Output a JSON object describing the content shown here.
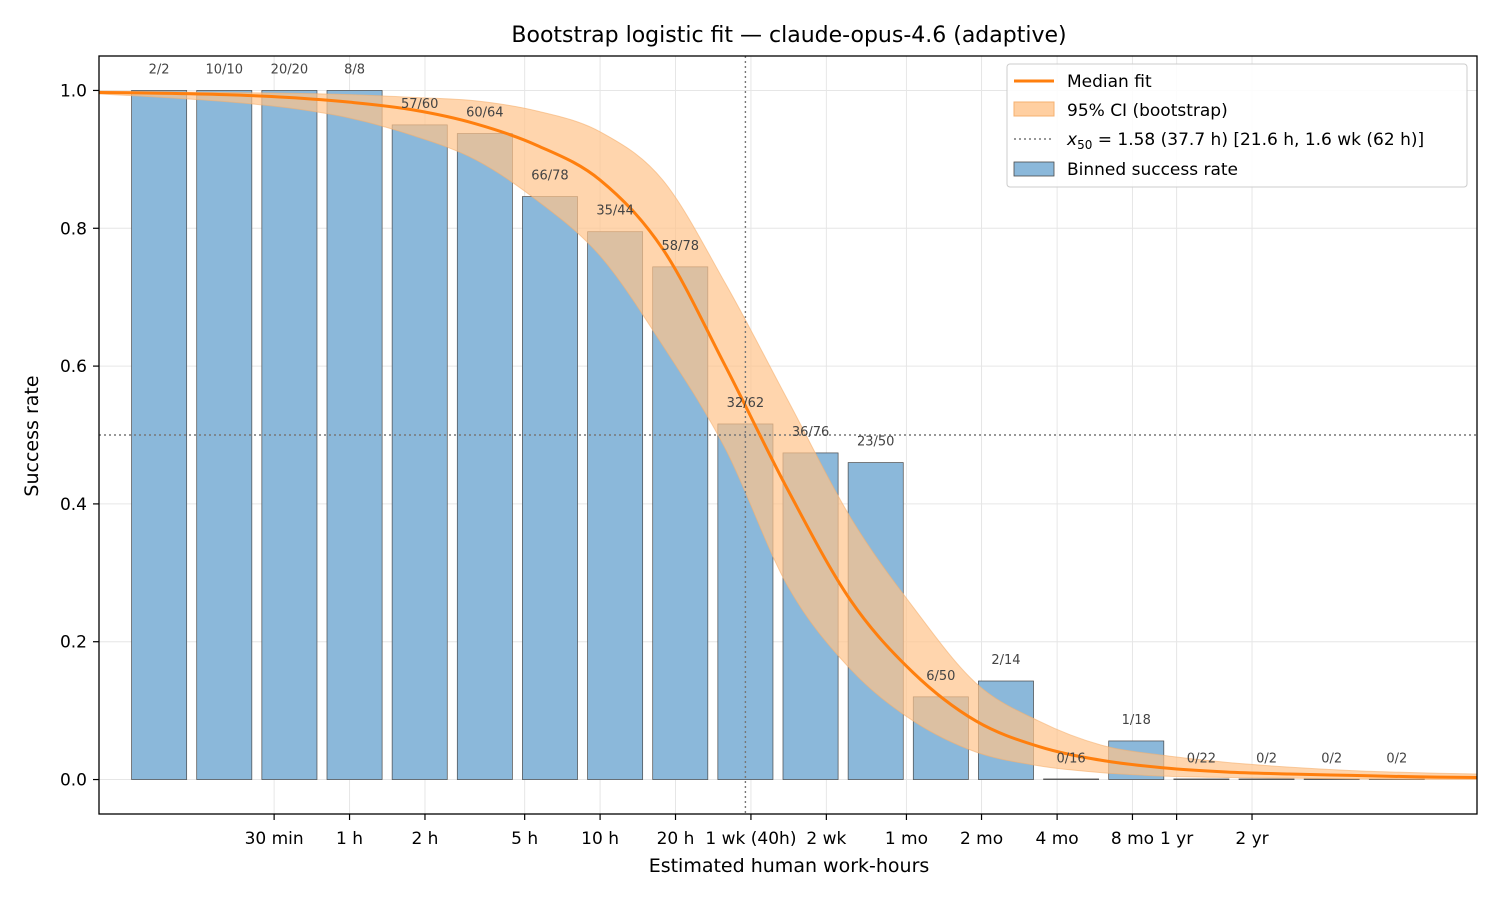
{
  "chart_data": {
    "type": "bar",
    "title": "Bootstrap logistic fit — claude-opus-4.6 (adaptive)",
    "xlabel": "Estimated human work-hours",
    "ylabel": "Success rate",
    "ylim": [
      -0.05,
      1.05
    ],
    "y_ticks": [
      0.0,
      0.2,
      0.4,
      0.6,
      0.8,
      1.0
    ],
    "y_tick_labels": [
      "0.0",
      "0.2",
      "0.4",
      "0.6",
      "0.8",
      "1.0"
    ],
    "x_scale": "log10(hours)",
    "xlim_log10_hours": [
      -1.0,
      4.5
    ],
    "x_ticks": [
      {
        "label": "30 min",
        "hours": 0.5
      },
      {
        "label": "1 h",
        "hours": 1
      },
      {
        "label": "2 h",
        "hours": 2
      },
      {
        "label": "5 h",
        "hours": 5
      },
      {
        "label": "10 h",
        "hours": 10
      },
      {
        "label": "20 h",
        "hours": 20
      },
      {
        "label": "1 wk (40h)",
        "hours": 40
      },
      {
        "label": "2 wk",
        "hours": 80
      },
      {
        "label": "1 mo",
        "hours": 167
      },
      {
        "label": "2 mo",
        "hours": 333
      },
      {
        "label": "4 mo",
        "hours": 667
      },
      {
        "label": "8 mo",
        "hours": 1333
      },
      {
        "label": "1 yr",
        "hours": 2000
      },
      {
        "label": "2 yr",
        "hours": 4000
      }
    ],
    "bin_log10_hours": [
      -0.76,
      -0.5,
      -0.24,
      0.02,
      0.28,
      0.54,
      0.8,
      1.06,
      1.32,
      1.58,
      1.84,
      2.1,
      2.36,
      2.62,
      2.88,
      3.14,
      3.4,
      3.66,
      3.92,
      4.18
    ],
    "bin_width_log10": 0.22,
    "bin_labels": [
      "2/2",
      "10/10",
      "20/20",
      "8/8",
      "57/60",
      "60/64",
      "66/78",
      "35/44",
      "58/78",
      "32/62",
      "36/76",
      "23/50",
      "6/50",
      "2/14",
      "0/16",
      "1/18",
      "0/22",
      "0/2",
      "0/2",
      "0/2"
    ],
    "bin_rates": [
      1.0,
      1.0,
      1.0,
      1.0,
      0.95,
      0.9375,
      0.846,
      0.795,
      0.744,
      0.516,
      0.474,
      0.46,
      0.12,
      0.143,
      0.0,
      0.056,
      0.0,
      0.0,
      0.0,
      0.0
    ],
    "fit_x_log10_hours": [
      -1.0,
      -0.75,
      -0.5,
      -0.25,
      0.0,
      0.25,
      0.5,
      0.75,
      1.0,
      1.25,
      1.5,
      1.75,
      2.0,
      2.25,
      2.5,
      2.75,
      3.0,
      3.25,
      3.5,
      3.75,
      4.0,
      4.25,
      4.5
    ],
    "median_fit": [
      0.997,
      0.996,
      0.994,
      0.99,
      0.983,
      0.972,
      0.952,
      0.92,
      0.87,
      0.77,
      0.6,
      0.42,
      0.26,
      0.155,
      0.085,
      0.048,
      0.028,
      0.017,
      0.011,
      0.008,
      0.006,
      0.004,
      0.003
    ],
    "ci_lower": [
      0.995,
      0.99,
      0.984,
      0.975,
      0.96,
      0.935,
      0.9,
      0.84,
      0.76,
      0.63,
      0.48,
      0.28,
      0.16,
      0.085,
      0.04,
      0.02,
      0.01,
      0.005,
      0.003,
      0.002,
      0.001,
      0.0005,
      0.0003
    ],
    "ci_upper": [
      0.999,
      0.998,
      0.997,
      0.996,
      0.994,
      0.99,
      0.985,
      0.97,
      0.94,
      0.87,
      0.72,
      0.55,
      0.38,
      0.25,
      0.14,
      0.085,
      0.05,
      0.035,
      0.025,
      0.018,
      0.013,
      0.01,
      0.008
    ],
    "x50_log10_hours": 1.58,
    "y50": 0.5,
    "legend": {
      "placement": "top-right",
      "entries": [
        {
          "label": "Median fit",
          "kind": "line"
        },
        {
          "label": "95% CI (bootstrap)",
          "kind": "band"
        },
        {
          "label_prefix": "x",
          "label_sub": "50",
          "label_suffix": " = 1.58 (37.7 h) [21.6 h, 1.6 wk (62 h)]",
          "kind": "dotted"
        },
        {
          "label": "Binned success rate",
          "kind": "bar"
        }
      ]
    },
    "colors": {
      "bar_fill": "#8bb8da",
      "bar_edge": "#4a4a4a",
      "median_line": "#ff7f0e",
      "ci_band": "#ffc38a",
      "ref_line": "#777777",
      "grid": "#e6e6e6"
    }
  }
}
